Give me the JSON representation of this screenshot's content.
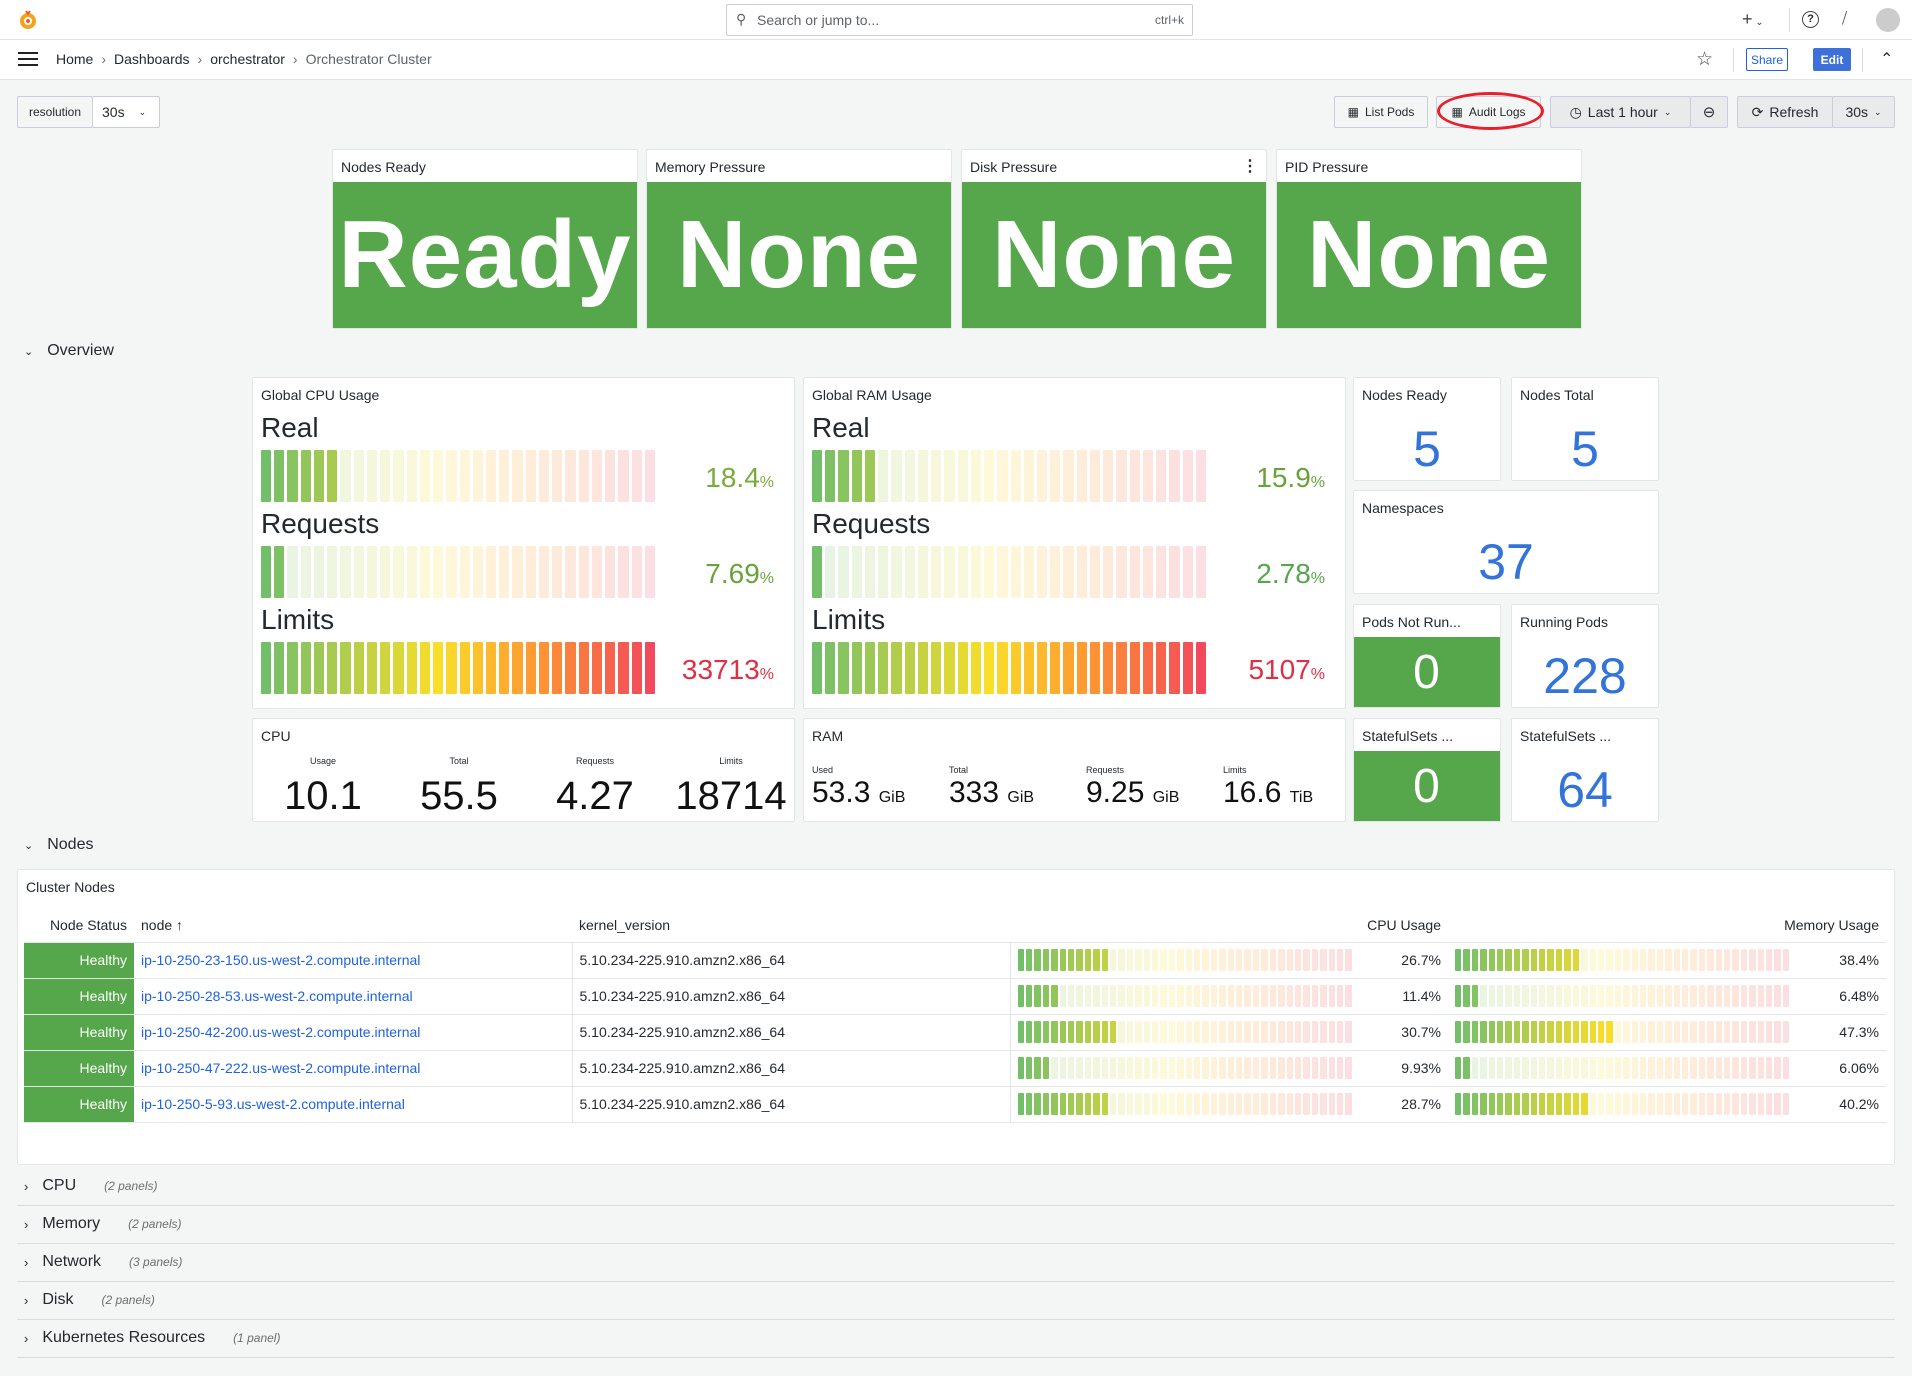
{
  "topbar": {
    "search_placeholder": "Search or jump to...",
    "search_shortcut": "ctrl+k",
    "add_label": "+"
  },
  "breadcrumb": [
    "Home",
    "Dashboards",
    "orchestrator",
    "Orchestrator Cluster"
  ],
  "header": {
    "share": "Share",
    "edit": "Edit"
  },
  "variables": {
    "resolution_label": "resolution",
    "resolution_value": "30s"
  },
  "toolbar": {
    "list_pods": "List Pods",
    "audit_logs": "Audit Logs",
    "time_range": "Last 1 hour",
    "refresh": "Refresh",
    "refresh_interval": "30s"
  },
  "colors": {
    "green": "#56a64b",
    "blue": "#3274d9",
    "red": "#e02f44",
    "link": "#1f62e0",
    "annotation": "#e8202a"
  },
  "status_panels": [
    {
      "title": "Nodes Ready",
      "value": "Ready"
    },
    {
      "title": "Memory Pressure",
      "value": "None"
    },
    {
      "title": "Disk Pressure",
      "value": "None"
    },
    {
      "title": "PID Pressure",
      "value": "None"
    }
  ],
  "overview": {
    "title": "Overview",
    "cpu_usage": {
      "title": "Global CPU Usage",
      "rows": [
        {
          "label": "Real",
          "value": 18.4,
          "display": "18.4",
          "unit": "%",
          "color": "#7aab3c"
        },
        {
          "label": "Requests",
          "value": 7.69,
          "display": "7.69",
          "unit": "%",
          "color": "#6aa23a"
        },
        {
          "label": "Limits",
          "value": 33713,
          "display": "33713",
          "unit": "%",
          "color": "#e02f44"
        }
      ]
    },
    "ram_usage": {
      "title": "Global RAM Usage",
      "rows": [
        {
          "label": "Real",
          "value": 15.9,
          "display": "15.9",
          "unit": "%",
          "color": "#6aa23a"
        },
        {
          "label": "Requests",
          "value": 2.78,
          "display": "2.78",
          "unit": "%",
          "color": "#56a64b"
        },
        {
          "label": "Limits",
          "value": 5107,
          "display": "5107",
          "unit": "%",
          "color": "#e02f44"
        }
      ]
    },
    "nodes_ready": {
      "title": "Nodes Ready",
      "value": "5"
    },
    "nodes_total": {
      "title": "Nodes Total",
      "value": "5"
    },
    "namespaces": {
      "title": "Namespaces",
      "value": "37"
    },
    "pods_not_running": {
      "title": "Pods Not Run...",
      "value": "0"
    },
    "running_pods": {
      "title": "Running Pods",
      "value": "228"
    },
    "statefulsets_a": {
      "title": "StatefulSets ...",
      "value": "0"
    },
    "statefulsets_b": {
      "title": "StatefulSets ...",
      "value": "64"
    },
    "cpu": {
      "title": "CPU",
      "items": [
        {
          "label": "Usage",
          "value": "10.1"
        },
        {
          "label": "Total",
          "value": "55.5"
        },
        {
          "label": "Requests",
          "value": "4.27"
        },
        {
          "label": "Limits",
          "value": "18714"
        }
      ]
    },
    "ram": {
      "title": "RAM",
      "items": [
        {
          "label": "Used",
          "value": "53.3",
          "unit": "GiB"
        },
        {
          "label": "Total",
          "value": "333",
          "unit": "GiB"
        },
        {
          "label": "Requests",
          "value": "9.25",
          "unit": "GiB"
        },
        {
          "label": "Limits",
          "value": "16.6",
          "unit": "TiB"
        }
      ]
    }
  },
  "nodes": {
    "title": "Nodes",
    "panel_title": "Cluster Nodes",
    "columns": [
      "Node Status",
      "node",
      "kernel_version",
      "CPU Usage",
      "Memory Usage"
    ],
    "rows": [
      {
        "status": "Healthy",
        "node": "ip-10-250-23-150.us-west-2.compute.internal",
        "kernel": "5.10.234-225.910.amzn2.x86_64",
        "cpu": 26.7,
        "cpu_display": "26.7%",
        "mem": 38.4,
        "mem_display": "38.4%"
      },
      {
        "status": "Healthy",
        "node": "ip-10-250-28-53.us-west-2.compute.internal",
        "kernel": "5.10.234-225.910.amzn2.x86_64",
        "cpu": 11.4,
        "cpu_display": "11.4%",
        "mem": 6.48,
        "mem_display": "6.48%"
      },
      {
        "status": "Healthy",
        "node": "ip-10-250-42-200.us-west-2.compute.internal",
        "kernel": "5.10.234-225.910.amzn2.x86_64",
        "cpu": 30.7,
        "cpu_display": "30.7%",
        "mem": 47.3,
        "mem_display": "47.3%"
      },
      {
        "status": "Healthy",
        "node": "ip-10-250-47-222.us-west-2.compute.internal",
        "kernel": "5.10.234-225.910.amzn2.x86_64",
        "cpu": 9.93,
        "cpu_display": "9.93%",
        "mem": 6.06,
        "mem_display": "6.06%"
      },
      {
        "status": "Healthy",
        "node": "ip-10-250-5-93.us-west-2.compute.internal",
        "kernel": "5.10.234-225.910.amzn2.x86_64",
        "cpu": 28.7,
        "cpu_display": "28.7%",
        "mem": 40.2,
        "mem_display": "40.2%"
      }
    ]
  },
  "collapsed_rows": [
    {
      "title": "CPU",
      "count": "(2 panels)"
    },
    {
      "title": "Memory",
      "count": "(2 panels)"
    },
    {
      "title": "Network",
      "count": "(3 panels)"
    },
    {
      "title": "Disk",
      "count": "(2 panels)"
    },
    {
      "title": "Kubernetes Resources",
      "count": "(1 panel)"
    }
  ]
}
